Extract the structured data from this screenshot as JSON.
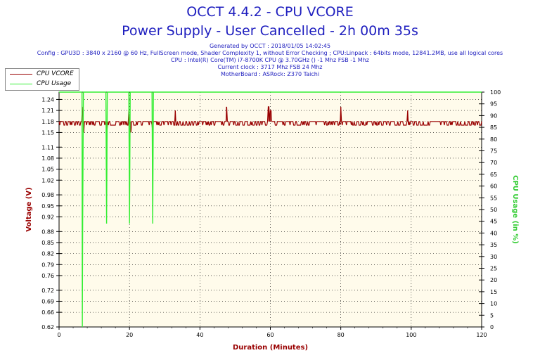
{
  "header": {
    "title": "OCCT 4.4.2 - CPU VCORE",
    "subtitle": "Power Supply - User Cancelled - 2h 00m 35s",
    "info_lines": [
      "Generated by OCCT : 2018/01/05 14:02:45",
      "Config : GPU3D : 3840 x 2160 @ 60 Hz, FullScreen mode, Shader Complexity 1, without Error Checking ; CPU:Linpack : 64bits mode, 12841.2MB, use all logical cores",
      "CPU : Intel(R) Core(TM) i7-8700K CPU @ 3.70GHz () -1 Mhz FSB -1 Mhz",
      "Current clock : 3717 Mhz FSB 24 Mhz",
      "MotherBoard : ASRock: Z370 Taichi"
    ]
  },
  "legend": [
    {
      "label": "CPU VCORE",
      "color": "#990000"
    },
    {
      "label": "CPU Usage",
      "color": "#33ee33"
    }
  ],
  "chart_data": {
    "type": "line",
    "xlabel": "Duration (Minutes)",
    "ylabel_left": "Voltage (V)",
    "ylabel_right": "CPU Usage (in %)",
    "xlim": [
      0,
      120
    ],
    "ylim_left": [
      0.62,
      1.26
    ],
    "ylim_right": [
      0,
      100
    ],
    "x_ticks": [
      "0",
      "20",
      "40",
      "60",
      "80",
      "100",
      "120"
    ],
    "y_left_ticks": [
      "0.62",
      "0.66",
      "0.69",
      "0.72",
      "0.76",
      "0.79",
      "0.82",
      "0.85",
      "0.88",
      "0.92",
      "0.95",
      "0.98",
      "1.02",
      "1.05",
      "1.08",
      "1.11",
      "1.15",
      "1.18",
      "1.21",
      "1.24"
    ],
    "y_right_ticks": [
      "0",
      "5",
      "10",
      "15",
      "20",
      "25",
      "30",
      "35",
      "40",
      "45",
      "50",
      "55",
      "60",
      "65",
      "70",
      "75",
      "80",
      "85",
      "90",
      "95",
      "100"
    ],
    "grid": true,
    "background": "#fffbeb",
    "series": [
      {
        "name": "CPU VCORE",
        "axis": "left",
        "color": "#990000",
        "baseline": 1.18,
        "band_low": 1.17,
        "spikes": [
          {
            "x": 6.5,
            "y": 1.22
          },
          {
            "x": 7.0,
            "y": 1.15
          },
          {
            "x": 13.5,
            "y": 1.15
          },
          {
            "x": 19.8,
            "y": 1.21
          },
          {
            "x": 20.3,
            "y": 1.15
          },
          {
            "x": 26.5,
            "y": 1.15
          },
          {
            "x": 33.0,
            "y": 1.21
          },
          {
            "x": 47.5,
            "y": 1.22
          },
          {
            "x": 59.5,
            "y": 1.22
          },
          {
            "x": 60.0,
            "y": 1.21
          },
          {
            "x": 80.0,
            "y": 1.22
          },
          {
            "x": 99.0,
            "y": 1.21
          }
        ]
      },
      {
        "name": "CPU Usage",
        "axis": "right",
        "color": "#33ee33",
        "points": [
          [
            0,
            100
          ],
          [
            6.5,
            100
          ],
          [
            6.6,
            0
          ],
          [
            6.7,
            45
          ],
          [
            6.9,
            100
          ],
          [
            13.3,
            100
          ],
          [
            13.5,
            44
          ],
          [
            13.7,
            100
          ],
          [
            19.8,
            100
          ],
          [
            20.0,
            44
          ],
          [
            20.2,
            100
          ],
          [
            26.4,
            100
          ],
          [
            26.6,
            44
          ],
          [
            26.8,
            100
          ],
          [
            120,
            100
          ]
        ]
      }
    ]
  }
}
